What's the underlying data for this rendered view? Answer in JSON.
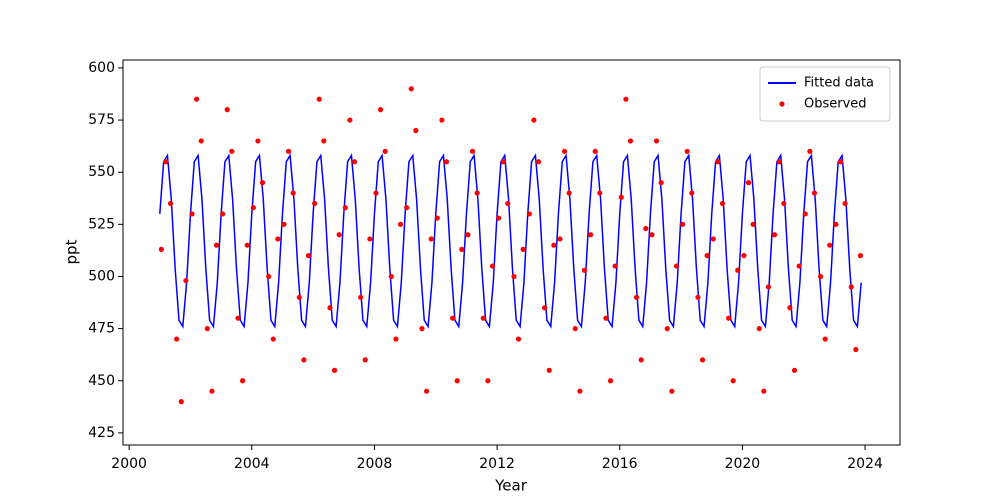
{
  "chart_data": {
    "type": "line",
    "xlabel": "Year",
    "ylabel": "ppt",
    "xlim": [
      1999.8,
      2025.14
    ],
    "ylim": [
      419.2,
      603.8
    ],
    "xticks": [
      2000,
      2004,
      2008,
      2012,
      2016,
      2020,
      2024
    ],
    "yticks": [
      425,
      450,
      475,
      500,
      525,
      550,
      575,
      600
    ],
    "legend": "upper right",
    "series": [
      {
        "name": "Fitted data",
        "type": "line",
        "color": "#0000ff",
        "x": [
          2001,
          2001.125,
          2001.25,
          2001.375,
          2001.5,
          2001.625,
          2001.75,
          2001.875,
          2002,
          2002.125,
          2002.25,
          2002.375,
          2002.5,
          2002.625,
          2002.75,
          2002.875,
          2003,
          2003.125,
          2003.25,
          2003.375,
          2003.5,
          2003.625,
          2003.75,
          2003.875,
          2004,
          2004.125,
          2004.25,
          2004.375,
          2004.5,
          2004.625,
          2004.75,
          2004.875,
          2005,
          2005.125,
          2005.25,
          2005.375,
          2005.5,
          2005.625,
          2005.75,
          2005.875,
          2006,
          2006.125,
          2006.25,
          2006.375,
          2006.5,
          2006.625,
          2006.75,
          2006.875,
          2007,
          2007.125,
          2007.25,
          2007.375,
          2007.5,
          2007.625,
          2007.75,
          2007.875,
          2008,
          2008.125,
          2008.25,
          2008.375,
          2008.5,
          2008.625,
          2008.75,
          2008.875,
          2009,
          2009.125,
          2009.25,
          2009.375,
          2009.5,
          2009.625,
          2009.75,
          2009.875,
          2010,
          2010.125,
          2010.25,
          2010.375,
          2010.5,
          2010.625,
          2010.75,
          2010.875,
          2011,
          2011.125,
          2011.25,
          2011.375,
          2011.5,
          2011.625,
          2011.75,
          2011.875,
          2012,
          2012.125,
          2012.25,
          2012.375,
          2012.5,
          2012.625,
          2012.75,
          2012.875,
          2013,
          2013.125,
          2013.25,
          2013.375,
          2013.5,
          2013.625,
          2013.75,
          2013.875,
          2014,
          2014.125,
          2014.25,
          2014.375,
          2014.5,
          2014.625,
          2014.75,
          2014.875,
          2015,
          2015.125,
          2015.25,
          2015.375,
          2015.5,
          2015.625,
          2015.75,
          2015.875,
          2016,
          2016.125,
          2016.25,
          2016.375,
          2016.5,
          2016.625,
          2016.75,
          2016.875,
          2017,
          2017.125,
          2017.25,
          2017.375,
          2017.5,
          2017.625,
          2017.75,
          2017.875,
          2018,
          2018.125,
          2018.25,
          2018.375,
          2018.5,
          2018.625,
          2018.75,
          2018.875,
          2019,
          2019.125,
          2019.25,
          2019.375,
          2019.5,
          2019.625,
          2019.75,
          2019.875,
          2020,
          2020.125,
          2020.25,
          2020.375,
          2020.5,
          2020.625,
          2020.75,
          2020.875,
          2021,
          2021.125,
          2021.25,
          2021.375,
          2021.5,
          2021.625,
          2021.75,
          2021.875,
          2022,
          2022.125,
          2022.25,
          2022.375,
          2022.5,
          2022.625,
          2022.75,
          2022.875,
          2023,
          2023.125,
          2023.25,
          2023.375,
          2023.5,
          2023.625,
          2023.75,
          2023.875
        ],
        "values": [
          530,
          555,
          558,
          537,
          504,
          479,
          476,
          497,
          530,
          555,
          558,
          537,
          504,
          479,
          476,
          497,
          530,
          555,
          558,
          537,
          504,
          479,
          476,
          497,
          530,
          555,
          558,
          537,
          504,
          479,
          476,
          497,
          530,
          555,
          558,
          537,
          504,
          479,
          476,
          497,
          530,
          555,
          558,
          537,
          504,
          479,
          476,
          497,
          530,
          555,
          558,
          537,
          504,
          479,
          476,
          497,
          530,
          555,
          558,
          537,
          504,
          479,
          476,
          497,
          530,
          555,
          558,
          537,
          504,
          479,
          476,
          497,
          530,
          555,
          558,
          537,
          504,
          479,
          476,
          497,
          530,
          555,
          558,
          537,
          504,
          479,
          476,
          497,
          530,
          555,
          558,
          537,
          504,
          479,
          476,
          497,
          530,
          555,
          558,
          537,
          504,
          479,
          476,
          497,
          530,
          555,
          558,
          537,
          504,
          479,
          476,
          497,
          530,
          555,
          558,
          537,
          504,
          479,
          476,
          497,
          530,
          555,
          558,
          537,
          504,
          479,
          476,
          497,
          530,
          555,
          558,
          537,
          504,
          479,
          476,
          497,
          530,
          555,
          558,
          537,
          504,
          479,
          476,
          497,
          530,
          555,
          558,
          537,
          504,
          479,
          476,
          497,
          530,
          555,
          558,
          537,
          504,
          479,
          476,
          497,
          530,
          555,
          558,
          537,
          504,
          479,
          476,
          497,
          530,
          555,
          558,
          537,
          504,
          479,
          476,
          497,
          530,
          555,
          558,
          537,
          504,
          479,
          476,
          497
        ]
      },
      {
        "name": "Observed",
        "type": "scatter",
        "color": "#ff0000",
        "x": [
          2001.05,
          2001.2,
          2001.35,
          2001.55,
          2001.7,
          2001.85,
          2002.05,
          2002.2,
          2002.35,
          2002.55,
          2002.7,
          2002.85,
          2003.05,
          2003.2,
          2003.35,
          2003.55,
          2003.7,
          2003.85,
          2004.05,
          2004.2,
          2004.35,
          2004.55,
          2004.7,
          2004.85,
          2005.05,
          2005.2,
          2005.35,
          2005.55,
          2005.7,
          2005.85,
          2006.05,
          2006.2,
          2006.35,
          2006.55,
          2006.7,
          2006.85,
          2007.05,
          2007.2,
          2007.35,
          2007.55,
          2007.7,
          2007.85,
          2008.05,
          2008.2,
          2008.35,
          2008.55,
          2008.7,
          2008.85,
          2009.05,
          2009.2,
          2009.35,
          2009.55,
          2009.7,
          2009.85,
          2010.05,
          2010.2,
          2010.35,
          2010.55,
          2010.7,
          2010.85,
          2011.05,
          2011.2,
          2011.35,
          2011.55,
          2011.7,
          2011.85,
          2012.05,
          2012.2,
          2012.35,
          2012.55,
          2012.7,
          2012.85,
          2013.05,
          2013.2,
          2013.35,
          2013.55,
          2013.7,
          2013.85,
          2014.05,
          2014.2,
          2014.35,
          2014.55,
          2014.7,
          2014.85,
          2015.05,
          2015.2,
          2015.35,
          2015.55,
          2015.7,
          2015.85,
          2016.05,
          2016.2,
          2016.35,
          2016.55,
          2016.7,
          2016.85,
          2017.05,
          2017.2,
          2017.35,
          2017.55,
          2017.7,
          2017.85,
          2018.05,
          2018.2,
          2018.35,
          2018.55,
          2018.7,
          2018.85,
          2019.05,
          2019.2,
          2019.35,
          2019.55,
          2019.7,
          2019.85,
          2020.05,
          2020.2,
          2020.35,
          2020.55,
          2020.7,
          2020.85,
          2021.05,
          2021.2,
          2021.35,
          2021.55,
          2021.7,
          2021.85,
          2022.05,
          2022.2,
          2022.35,
          2022.55,
          2022.7,
          2022.85,
          2023.05,
          2023.2,
          2023.35,
          2023.55,
          2023.7,
          2023.85
        ],
        "values": [
          513,
          555,
          535,
          470,
          440,
          498,
          530,
          585,
          565,
          475,
          445,
          515,
          530,
          580,
          560,
          480,
          450,
          515,
          533,
          565,
          545,
          500,
          470,
          518,
          525,
          560,
          540,
          490,
          460,
          510,
          535,
          585,
          565,
          485,
          455,
          520,
          533,
          575,
          555,
          490,
          460,
          518,
          540,
          580,
          560,
          500,
          470,
          525,
          533,
          590,
          570,
          475,
          445,
          518,
          528,
          575,
          555,
          480,
          450,
          513,
          520,
          560,
          540,
          480,
          450,
          505,
          528,
          555,
          535,
          500,
          470,
          513,
          530,
          575,
          555,
          485,
          455,
          515,
          518,
          560,
          540,
          475,
          445,
          503,
          520,
          560,
          540,
          480,
          450,
          505,
          538,
          585,
          565,
          490,
          460,
          523,
          520,
          565,
          545,
          475,
          445,
          505,
          525,
          560,
          540,
          490,
          460,
          510,
          518,
          555,
          535,
          480,
          450,
          503,
          510,
          545,
          525,
          475,
          445,
          495,
          520,
          555,
          535,
          485,
          455,
          505,
          530,
          560,
          540,
          500,
          470,
          515,
          525,
          555,
          535,
          495,
          465,
          510
        ]
      }
    ]
  }
}
